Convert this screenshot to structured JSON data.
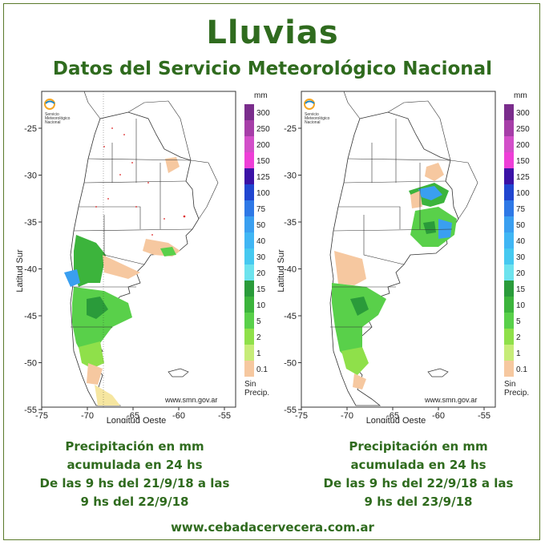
{
  "title": "Lluvias",
  "subtitle": "Datos del Servicio Meteorológico Nacional",
  "footer_url": "www.cebadacervecera.com.ar",
  "map": {
    "y_axis_label": "Latitud Sur",
    "x_axis_label": "Longitud Oeste",
    "y_ticks": [
      "-25",
      "-30",
      "-35",
      "-40",
      "-45",
      "-50",
      "-55"
    ],
    "x_ticks": [
      "-75",
      "-70",
      "-65",
      "-60",
      "-55"
    ],
    "source_url": "www.smn.gov.ar",
    "logo_text": [
      "Servicio",
      "Meteorológico",
      "Nacional"
    ],
    "legend_unit": "mm",
    "legend_no_precip": [
      "Sin",
      "Precip."
    ],
    "legend": [
      {
        "label": "300",
        "color": "#7a2d8c"
      },
      {
        "label": "250",
        "color": "#a63ea8"
      },
      {
        "label": "200",
        "color": "#d24fc9"
      },
      {
        "label": "150",
        "color": "#ee3fd7"
      },
      {
        "label": "125",
        "color": "#3b12a6"
      },
      {
        "label": "100",
        "color": "#2046d0"
      },
      {
        "label": "75",
        "color": "#2e78e6"
      },
      {
        "label": "50",
        "color": "#3a9ff0"
      },
      {
        "label": "40",
        "color": "#40b6f4"
      },
      {
        "label": "30",
        "color": "#46c9f0"
      },
      {
        "label": "20",
        "color": "#6de3ee"
      },
      {
        "label": "15",
        "color": "#2a9b3a"
      },
      {
        "label": "10",
        "color": "#3cb43c"
      },
      {
        "label": "5",
        "color": "#59d04a"
      },
      {
        "label": "2",
        "color": "#8fe04a"
      },
      {
        "label": "1",
        "color": "#c7ec78"
      },
      {
        "label": "0.1",
        "color": "#f6c8a0"
      }
    ]
  },
  "panels": [
    {
      "caption": [
        "Precipitación en mm",
        "acumulada en 24 hs",
        "De las 9 hs del 21/9/18 a las",
        "9 hs del 22/9/18"
      ]
    },
    {
      "caption": [
        "Precipitación en mm",
        "acumulada en 24 hs",
        "De las 9 hs del 22/9/18 a las",
        "9 hs del 23/9/18"
      ]
    }
  ]
}
